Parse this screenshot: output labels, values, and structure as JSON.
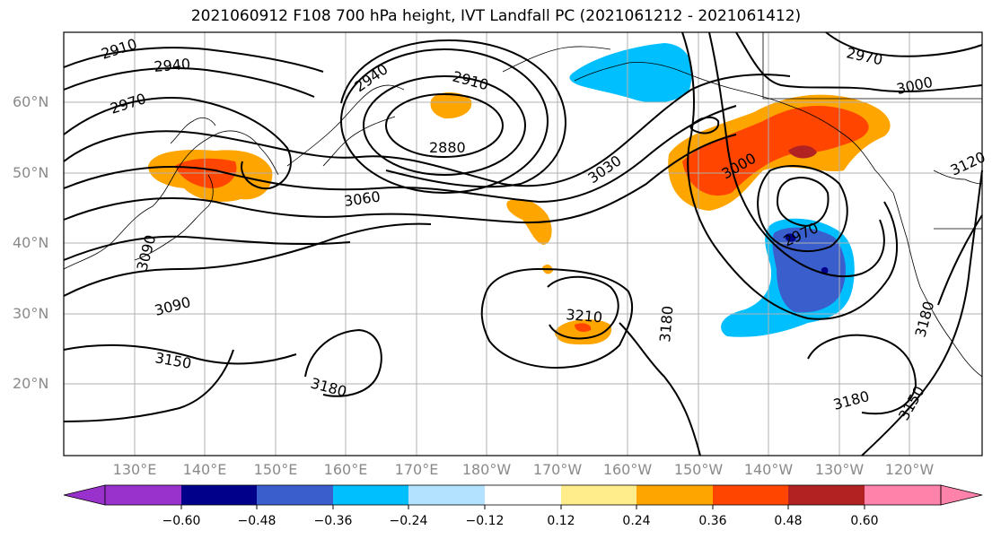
{
  "title": "2021060912 F108 700 hPa height, IVT Landfall PC (2021061212 - 2021061412)",
  "map": {
    "lat_labels": [
      "60°N",
      "50°N",
      "40°N",
      "30°N",
      "20°N"
    ],
    "lon_labels": [
      "130°E",
      "140°E",
      "150°E",
      "160°E",
      "170°E",
      "180°W",
      "170°W",
      "160°W",
      "150°W",
      "140°W",
      "130°W",
      "120°W"
    ],
    "contour_labels": [
      "2910",
      "2940",
      "2970",
      "2940",
      "2910",
      "2880",
      "2970",
      "3000",
      "3030",
      "3060",
      "3090",
      "3090",
      "3150",
      "3180",
      "3210",
      "3180",
      "3000",
      "2970",
      "3180",
      "3150",
      "3120",
      "3180"
    ]
  },
  "colorbar": {
    "ticks": [
      "−0.60",
      "−0.48",
      "−0.36",
      "−0.24",
      "−0.12",
      "0.12",
      "0.24",
      "0.36",
      "0.48",
      "0.60"
    ],
    "colors": [
      "#9932cc",
      "#00008b",
      "#3a5fcd",
      "#00bfff",
      "#b2e2ff",
      "#ffffff",
      "#ffec8b",
      "#ffa500",
      "#ff4500",
      "#b22222",
      "#ff82ab",
      "#ff82ab"
    ]
  }
}
